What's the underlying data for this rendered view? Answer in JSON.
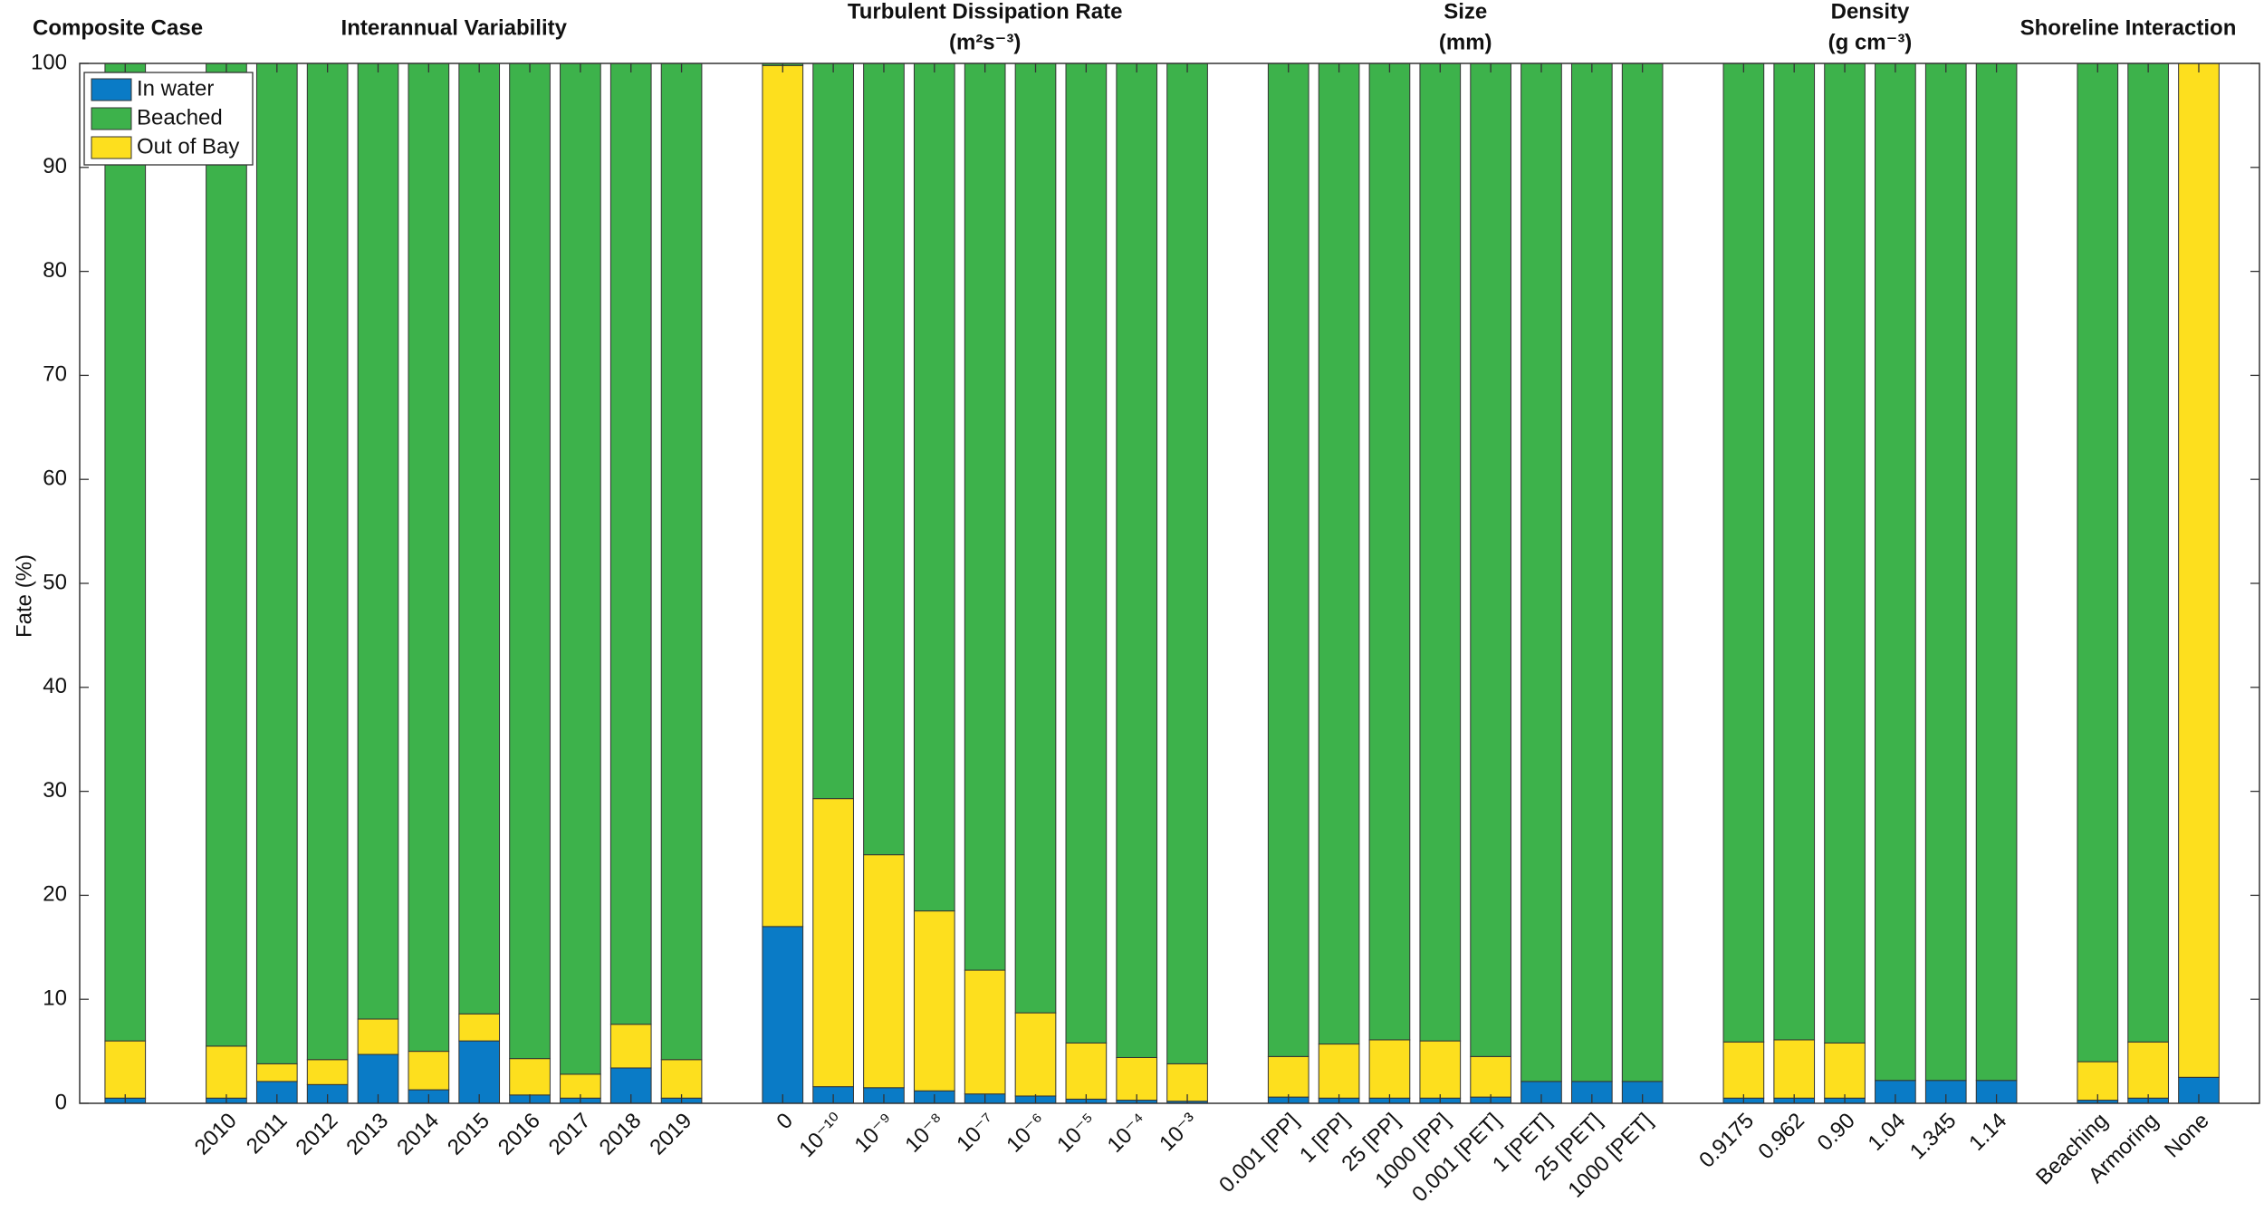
{
  "chart_data": {
    "type": "bar",
    "stacked": true,
    "ylabel": "Fate (%)",
    "ylim": [
      0,
      100
    ],
    "yticks": [
      0,
      10,
      20,
      30,
      40,
      50,
      60,
      70,
      80,
      90,
      100
    ],
    "legend": "upper left",
    "groups": [
      {
        "title": "Composite Case",
        "categories": [
          null
        ]
      },
      {
        "title": "Interannual Variability",
        "categories": [
          "2010",
          "2011",
          "2012",
          "2013",
          "2014",
          "2015",
          "2016",
          "2017",
          "2018",
          "2019"
        ]
      },
      {
        "title": "Turbulent Dissipation Rate",
        "unit": "(m²s⁻³)",
        "categories": [
          "0",
          "10⁻¹⁰",
          "10⁻⁹",
          "10⁻⁸",
          "10⁻⁷",
          "10⁻⁶",
          "10⁻⁵",
          "10⁻⁴",
          "10⁻³"
        ]
      },
      {
        "title": "Size",
        "unit": "(mm)",
        "categories": [
          "0.001 [PP]",
          "1 [PP]",
          "25 [PP]",
          "1000 [PP]",
          "0.001 [PET]",
          "1 [PET]",
          "25 [PET]",
          "1000 [PET]"
        ]
      },
      {
        "title": "Density",
        "unit": "(g cm⁻³)",
        "categories": [
          "0.9175",
          "0.962",
          "0.90",
          "1.04",
          "1.345",
          "1.14"
        ]
      },
      {
        "title": "Shoreline Interaction",
        "categories": [
          "Beaching",
          "Armoring",
          "None"
        ]
      }
    ],
    "series": [
      {
        "name": "In water",
        "color": "#0a7bc6",
        "values": [
          0.5,
          0.5,
          2.1,
          1.8,
          4.7,
          1.3,
          6.0,
          0.8,
          0.5,
          3.4,
          0.5,
          17,
          1.6,
          1.5,
          1.2,
          0.9,
          0.7,
          0.4,
          0.3,
          0.2,
          0.6,
          0.5,
          0.5,
          0.5,
          0.6,
          2.1,
          2.1,
          2.1,
          0.5,
          0.5,
          0.5,
          2.2,
          2.2,
          2.2,
          0.3,
          0.5,
          2.5
        ]
      },
      {
        "name": "Beached",
        "color": "#3db24b",
        "values": [
          94,
          94.5,
          96.2,
          95.8,
          91.9,
          95,
          91.4,
          95.7,
          97.2,
          92.4,
          95.8,
          0.2,
          70.7,
          76.1,
          81.5,
          87.2,
          91.3,
          94.2,
          95.6,
          96.2,
          95.5,
          94.3,
          93.9,
          94,
          95.5,
          97.9,
          97.9,
          97.9,
          94.1,
          93.9,
          94.2,
          97.8,
          97.8,
          97.8,
          96,
          94.1,
          0
        ]
      },
      {
        "name": "Out of Bay",
        "color": "#fddf1e",
        "values": [
          5.5,
          5,
          1.7,
          2.4,
          3.4,
          3.7,
          2.6,
          3.5,
          2.3,
          4.2,
          3.7,
          82.8,
          27.7,
          22.4,
          17.3,
          11.9,
          8,
          5.4,
          4.1,
          3.6,
          3.9,
          5.2,
          5.6,
          5.5,
          3.9,
          0,
          0,
          0,
          5.4,
          5.6,
          5.3,
          0,
          0,
          0,
          3.7,
          5.4,
          97.5
        ]
      }
    ]
  }
}
